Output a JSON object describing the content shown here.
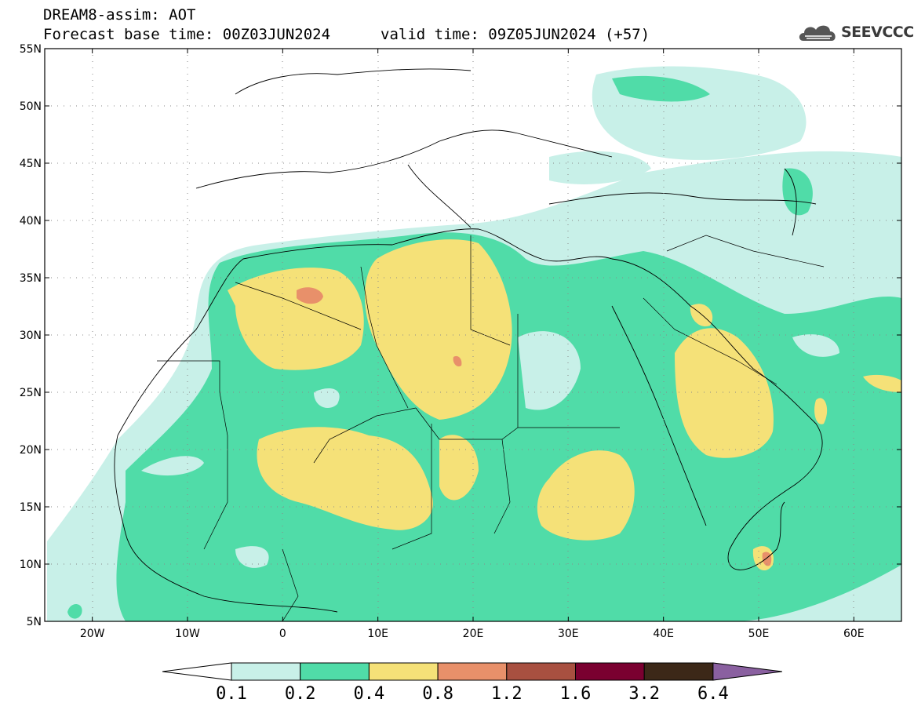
{
  "header": {
    "model_line": "DREAM8-assim: AOT",
    "base_time": "Forecast base time: 00Z03JUN2024",
    "valid_time": "valid time: 09Z05JUN2024 (+57)",
    "logo_text": "SEEVCCC"
  },
  "map": {
    "lon_range": [
      -25,
      65
    ],
    "lat_range": [
      5,
      55
    ],
    "lat_labels": [
      "5N",
      "10N",
      "15N",
      "20N",
      "25N",
      "30N",
      "35N",
      "40N",
      "45N",
      "50N",
      "55N"
    ],
    "lon_labels": [
      "20W",
      "10W",
      "0",
      "10E",
      "20E",
      "30E",
      "40E",
      "50E",
      "60E"
    ],
    "grid": "dotted"
  },
  "colorbar": {
    "levels": [
      "0.1",
      "0.2",
      "0.4",
      "0.8",
      "1.2",
      "1.6",
      "3.2",
      "6.4"
    ],
    "colors": [
      "#ffffff",
      "#c8f0e8",
      "#50dca8",
      "#f5e178",
      "#e8906a",
      "#a85040",
      "#7a0030",
      "#3c2818",
      "#8a60a0"
    ]
  }
}
